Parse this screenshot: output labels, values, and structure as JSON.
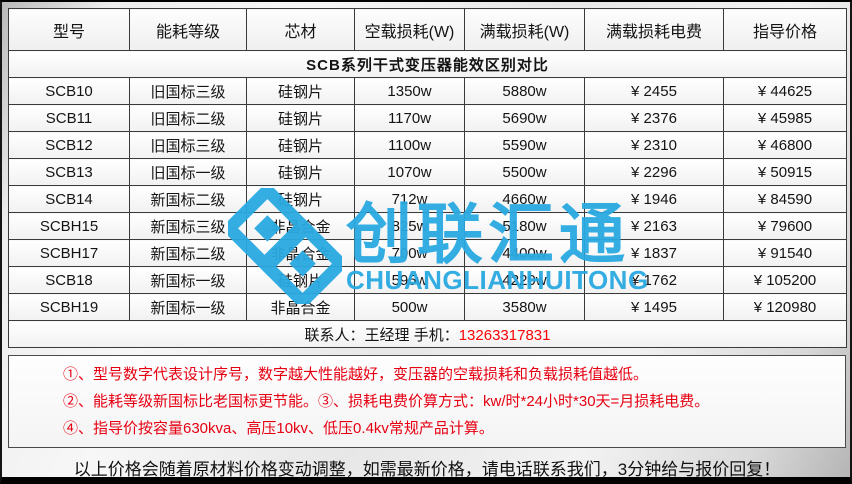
{
  "title": "SCB系列干式变压器能效区别对比",
  "table": {
    "headers": [
      "型号",
      "能耗等级",
      "芯材",
      "空载损耗(W)",
      "满载损耗(W)",
      "满载损耗电费",
      "指导价格"
    ],
    "rows": [
      [
        "SCB10",
        "旧国标三级",
        "硅钢片",
        "1350w",
        "5880w",
        "¥ 2455",
        "¥ 44625"
      ],
      [
        "SCB11",
        "旧国标二级",
        "硅钢片",
        "1170w",
        "5690w",
        "¥ 2376",
        "¥ 45985"
      ],
      [
        "SCB12",
        "旧国标三级",
        "硅钢片",
        "1100w",
        "5590w",
        "¥ 2310",
        "¥ 46800"
      ],
      [
        "SCB13",
        "旧国标一级",
        "硅钢片",
        "1070w",
        "5500w",
        "¥ 2296",
        "¥ 50915"
      ],
      [
        "SCB14",
        "新国标二级",
        "硅钢片",
        "712w",
        "4660w",
        "¥ 1946",
        "¥ 84590"
      ],
      [
        "SCBH15",
        "新国标三级",
        "非晶合金",
        "825w",
        "5180w",
        "¥ 2163",
        "¥ 79600"
      ],
      [
        "SCBH17",
        "新国标二级",
        "非晶合金",
        "700w",
        "4400w",
        "¥ 1837",
        "¥ 91540"
      ],
      [
        "SCB18",
        "新国标一级",
        "硅钢片",
        "595w",
        "4220w",
        "¥ 1762",
        "¥ 105200"
      ],
      [
        "SCBH19",
        "新国标一级",
        "非晶合金",
        "500w",
        "3580w",
        "¥ 1495",
        "¥ 120980"
      ]
    ]
  },
  "contact": {
    "label": "联系人：王经理  手机：",
    "phone": "13263317831"
  },
  "notes": [
    "①、型号数字代表设计序号，数字越大性能越好，变压器的空载损耗和负载损耗值越低。",
    "②、能耗等级新国标比老国标更节能。③、损耗电费价算方式：kw/时*24小时*30天=月损耗电费。",
    "④、指导价按容量630kva、高压10kv、低压0.4kv常规产品计算。"
  ],
  "footer": "以上价格会随着原材料价格变动调整，如需最新价格，请电话联系我们，3分钟给与报价回复！",
  "watermark": {
    "cn": "创联汇通",
    "en": "CHUANGLIANHUITONG"
  },
  "colors": {
    "watermark_blue": "#29a9e1",
    "note_red": "#e60012",
    "phone_red": "#fb0307",
    "border_dark": "#3a3a3a"
  }
}
